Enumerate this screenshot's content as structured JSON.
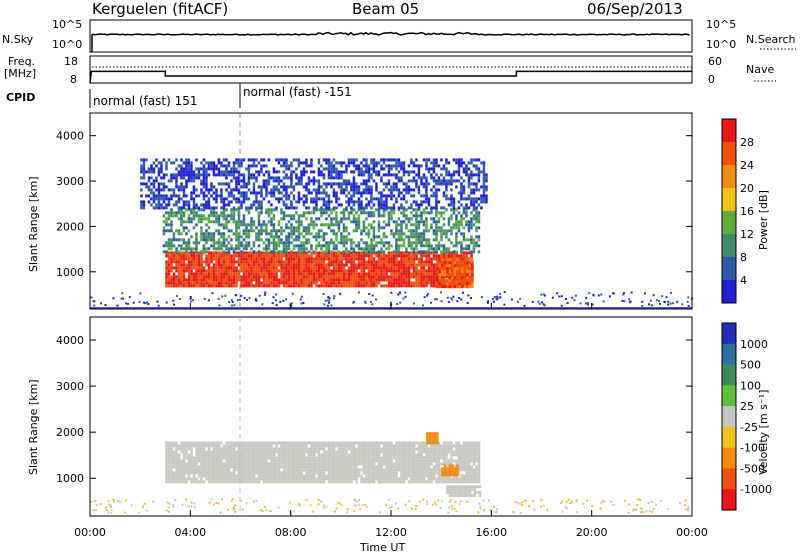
{
  "header": {
    "station": "Kerguelen (fitACF)",
    "beam": "Beam 05",
    "date": "06/Sep/2013"
  },
  "status_panel": {
    "nsky_label": "N.Sky",
    "nsky_ticks": [
      "10^5",
      "10^0"
    ],
    "nsearch_label": "N.Search",
    "freq_label": "Freq.",
    "freq_unit": "[MHz]",
    "freq_ticks": [
      "18",
      "8"
    ],
    "nave_label": "Nave",
    "nave_ticks": [
      "60",
      "0"
    ],
    "cpid_label": "CPID",
    "cpid_segments": [
      {
        "label": "normal (fast) 151",
        "start_hour": 0,
        "end_hour": 6
      },
      {
        "label": "normal (fast) -151",
        "start_hour": 6,
        "end_hour": 24
      }
    ],
    "freq_series": {
      "hours": [
        0,
        0.05,
        3.0,
        3.0,
        17.0,
        17.0,
        24
      ],
      "mhz": [
        8,
        12.3,
        12.3,
        10.6,
        10.6,
        12.3,
        12.3
      ]
    }
  },
  "x_axis": {
    "label": "Time UT",
    "ticks": [
      "00:00",
      "04:00",
      "08:00",
      "12:00",
      "16:00",
      "20:00",
      "00:00"
    ],
    "range_hours": [
      0,
      24
    ]
  },
  "chart_data": [
    {
      "type": "heatmap",
      "parameter": "Power",
      "ylabel": "Slant Range [km]",
      "yticks": [
        "1000",
        "2000",
        "3000",
        "4000"
      ],
      "ylim_km": [
        180,
        4500
      ],
      "colorbar_label": "Power [dB]",
      "colorbar_ticks": [
        "4",
        "8",
        "12",
        "16",
        "20",
        "24",
        "28"
      ],
      "colorbar_range": [
        0,
        32
      ],
      "colors": [
        "#1f1fd6",
        "#2c5ca8",
        "#3f8a6a",
        "#5fae3a",
        "#f2c21a",
        "#f08a10",
        "#ee5010",
        "#e81818"
      ],
      "echo_regions": [
        {
          "start_hour": 3.0,
          "end_hour": 15.2,
          "range_km": [
            700,
            1450
          ],
          "power_db": 28
        },
        {
          "start_hour": 2.9,
          "end_hour": 15.5,
          "range_km": [
            1450,
            2400
          ],
          "power_db": 10
        },
        {
          "start_hour": 2.0,
          "end_hour": 15.8,
          "range_km": [
            2400,
            3500
          ],
          "power_db": 4
        },
        {
          "start_hour": 13.8,
          "end_hour": 15.2,
          "range_km": [
            700,
            1300
          ],
          "power_db": 26
        }
      ]
    },
    {
      "type": "heatmap",
      "parameter": "Velocity",
      "ylabel": "Slant Range [km]",
      "yticks": [
        "1000",
        "2000",
        "3000",
        "4000"
      ],
      "ylim_km": [
        180,
        4500
      ],
      "colorbar_label": "Velocity [m s⁻¹]",
      "colorbar_ticks": [
        "1000",
        "500",
        "100",
        "25",
        "-25",
        "-100",
        "-500",
        "-1000"
      ],
      "colors": [
        "#1f2fb8",
        "#2c6ea0",
        "#3c8c5a",
        "#5cc03c",
        "#c8c8c0",
        "#f2c21a",
        "#f08a10",
        "#ee5010",
        "#e81818"
      ],
      "echo_regions": [
        {
          "start_hour": 3.0,
          "end_hour": 15.5,
          "range_km": [
            900,
            1800
          ],
          "velocity_ms": 0,
          "ground_scatter": true
        },
        {
          "start_hour": 14.2,
          "end_hour": 15.5,
          "range_km": [
            650,
            850
          ],
          "velocity_ms": 0,
          "ground_scatter": true
        },
        {
          "start_hour": 14.0,
          "end_hour": 14.6,
          "range_km": [
            1100,
            1300
          ],
          "velocity_ms": -250
        },
        {
          "start_hour": 13.4,
          "end_hour": 13.8,
          "range_km": [
            1800,
            2000
          ],
          "velocity_ms": -250
        }
      ]
    }
  ]
}
